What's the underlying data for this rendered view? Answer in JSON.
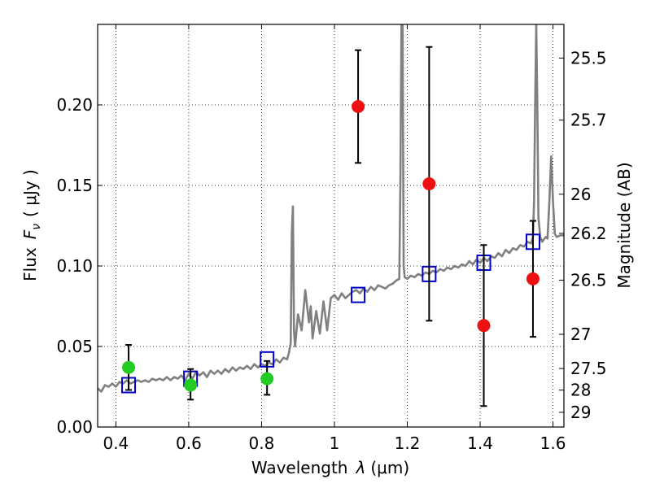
{
  "chart_data": {
    "type": "scatter",
    "title": "",
    "xlabel": "Wavelength",
    "xlabel_symbol": "λ",
    "xlabel_unit": "(μm)",
    "ylabel": "Flux",
    "ylabel_symbol": "F",
    "ylabel_sub": "ν",
    "ylabel_unit": "( μJy )",
    "y2label": "Magnitude (AB)",
    "xlim": [
      0.35,
      1.63
    ],
    "ylim": [
      0.0,
      0.25
    ],
    "grid": true,
    "x_ticks": [
      {
        "value": 0.4,
        "label": "0.4"
      },
      {
        "value": 0.6,
        "label": "0.6"
      },
      {
        "value": 0.8,
        "label": "0.8"
      },
      {
        "value": 1.0,
        "label": "1"
      },
      {
        "value": 1.2,
        "label": "1.2"
      },
      {
        "value": 1.4,
        "label": "1.4"
      },
      {
        "value": 1.6,
        "label": "1.6"
      }
    ],
    "y_ticks": [
      {
        "value": 0.0,
        "label": "0.00"
      },
      {
        "value": 0.05,
        "label": "0.05"
      },
      {
        "value": 0.1,
        "label": "0.10"
      },
      {
        "value": 0.15,
        "label": "0.15"
      },
      {
        "value": 0.2,
        "label": "0.20"
      }
    ],
    "y2_ticks": [
      {
        "mag": 25.5,
        "label": "25.5"
      },
      {
        "mag": 25.7,
        "label": "25.7"
      },
      {
        "mag": 26.0,
        "label": "26"
      },
      {
        "mag": 26.2,
        "label": "26.2"
      },
      {
        "mag": 26.5,
        "label": "26.5"
      },
      {
        "mag": 27.0,
        "label": "27"
      },
      {
        "mag": 27.5,
        "label": "27.5"
      },
      {
        "mag": 28.0,
        "label": "28"
      },
      {
        "mag": 29.0,
        "label": "29"
      }
    ],
    "series": [
      {
        "kind": "line",
        "color": "#808080",
        "points": [
          [
            0.35,
            0.024
          ],
          [
            0.36,
            0.022
          ],
          [
            0.37,
            0.026
          ],
          [
            0.38,
            0.025
          ],
          [
            0.39,
            0.027
          ],
          [
            0.4,
            0.025
          ],
          [
            0.41,
            0.028
          ],
          [
            0.42,
            0.027
          ],
          [
            0.43,
            0.029
          ],
          [
            0.44,
            0.027
          ],
          [
            0.45,
            0.028
          ],
          [
            0.46,
            0.029
          ],
          [
            0.47,
            0.028
          ],
          [
            0.48,
            0.029
          ],
          [
            0.49,
            0.028
          ],
          [
            0.5,
            0.03
          ],
          [
            0.51,
            0.029
          ],
          [
            0.52,
            0.03
          ],
          [
            0.53,
            0.029
          ],
          [
            0.54,
            0.031
          ],
          [
            0.55,
            0.029
          ],
          [
            0.56,
            0.031
          ],
          [
            0.57,
            0.03
          ],
          [
            0.58,
            0.032
          ],
          [
            0.59,
            0.029
          ],
          [
            0.6,
            0.033
          ],
          [
            0.61,
            0.03
          ],
          [
            0.62,
            0.034
          ],
          [
            0.63,
            0.032
          ],
          [
            0.64,
            0.034
          ],
          [
            0.65,
            0.031
          ],
          [
            0.66,
            0.035
          ],
          [
            0.67,
            0.033
          ],
          [
            0.68,
            0.035
          ],
          [
            0.69,
            0.033
          ],
          [
            0.7,
            0.036
          ],
          [
            0.71,
            0.034
          ],
          [
            0.72,
            0.037
          ],
          [
            0.73,
            0.035
          ],
          [
            0.74,
            0.037
          ],
          [
            0.75,
            0.036
          ],
          [
            0.76,
            0.038
          ],
          [
            0.77,
            0.036
          ],
          [
            0.78,
            0.039
          ],
          [
            0.79,
            0.037
          ],
          [
            0.8,
            0.039
          ],
          [
            0.81,
            0.038
          ],
          [
            0.82,
            0.04
          ],
          [
            0.83,
            0.039
          ],
          [
            0.84,
            0.042
          ],
          [
            0.85,
            0.04
          ],
          [
            0.86,
            0.043
          ],
          [
            0.87,
            0.042
          ],
          [
            0.875,
            0.046
          ],
          [
            0.88,
            0.052
          ],
          [
            0.883,
            0.12
          ],
          [
            0.886,
            0.137
          ],
          [
            0.889,
            0.06
          ],
          [
            0.892,
            0.05
          ],
          [
            0.9,
            0.07
          ],
          [
            0.91,
            0.06
          ],
          [
            0.92,
            0.085
          ],
          [
            0.93,
            0.065
          ],
          [
            0.935,
            0.075
          ],
          [
            0.94,
            0.055
          ],
          [
            0.95,
            0.072
          ],
          [
            0.96,
            0.058
          ],
          [
            0.97,
            0.078
          ],
          [
            0.98,
            0.06
          ],
          [
            0.99,
            0.08
          ],
          [
            1.0,
            0.082
          ],
          [
            1.01,
            0.079
          ],
          [
            1.02,
            0.083
          ],
          [
            1.03,
            0.08
          ],
          [
            1.04,
            0.082
          ],
          [
            1.05,
            0.084
          ],
          [
            1.06,
            0.085
          ],
          [
            1.07,
            0.083
          ],
          [
            1.08,
            0.086
          ],
          [
            1.09,
            0.084
          ],
          [
            1.1,
            0.087
          ],
          [
            1.11,
            0.085
          ],
          [
            1.12,
            0.088
          ],
          [
            1.13,
            0.087
          ],
          [
            1.14,
            0.086
          ],
          [
            1.15,
            0.088
          ],
          [
            1.16,
            0.089
          ],
          [
            1.17,
            0.091
          ],
          [
            1.178,
            0.092
          ],
          [
            1.181,
            0.15
          ],
          [
            1.184,
            0.25
          ],
          [
            1.187,
            0.25
          ],
          [
            1.19,
            0.1
          ],
          [
            1.193,
            0.093
          ],
          [
            1.2,
            0.092
          ],
          [
            1.21,
            0.094
          ],
          [
            1.22,
            0.093
          ],
          [
            1.23,
            0.095
          ],
          [
            1.24,
            0.094
          ],
          [
            1.25,
            0.096
          ],
          [
            1.26,
            0.095
          ],
          [
            1.27,
            0.097
          ],
          [
            1.28,
            0.096
          ],
          [
            1.29,
            0.098
          ],
          [
            1.3,
            0.097
          ],
          [
            1.31,
            0.099
          ],
          [
            1.32,
            0.098
          ],
          [
            1.33,
            0.1
          ],
          [
            1.34,
            0.099
          ],
          [
            1.35,
            0.101
          ],
          [
            1.36,
            0.1
          ],
          [
            1.37,
            0.103
          ],
          [
            1.38,
            0.101
          ],
          [
            1.39,
            0.104
          ],
          [
            1.4,
            0.102
          ],
          [
            1.41,
            0.105
          ],
          [
            1.42,
            0.103
          ],
          [
            1.43,
            0.106
          ],
          [
            1.44,
            0.105
          ],
          [
            1.45,
            0.108
          ],
          [
            1.46,
            0.106
          ],
          [
            1.47,
            0.11
          ],
          [
            1.48,
            0.108
          ],
          [
            1.49,
            0.111
          ],
          [
            1.5,
            0.11
          ],
          [
            1.51,
            0.113
          ],
          [
            1.52,
            0.112
          ],
          [
            1.53,
            0.115
          ],
          [
            1.54,
            0.114
          ],
          [
            1.545,
            0.118
          ],
          [
            1.548,
            0.14
          ],
          [
            1.551,
            0.2
          ],
          [
            1.554,
            0.25
          ],
          [
            1.557,
            0.2
          ],
          [
            1.56,
            0.13
          ],
          [
            1.565,
            0.118
          ],
          [
            1.57,
            0.115
          ],
          [
            1.58,
            0.118
          ],
          [
            1.585,
            0.117
          ],
          [
            1.59,
            0.14
          ],
          [
            1.595,
            0.168
          ],
          [
            1.6,
            0.14
          ],
          [
            1.605,
            0.12
          ],
          [
            1.61,
            0.118
          ],
          [
            1.62,
            0.119
          ],
          [
            1.63,
            0.119
          ]
        ]
      },
      {
        "kind": "squares",
        "color": "#0000cc",
        "points": [
          [
            0.435,
            0.026
          ],
          [
            0.605,
            0.03
          ],
          [
            0.815,
            0.042
          ],
          [
            1.065,
            0.082
          ],
          [
            1.26,
            0.095
          ],
          [
            1.41,
            0.102
          ],
          [
            1.545,
            0.115
          ]
        ]
      },
      {
        "kind": "dots",
        "color": "#22cc22",
        "points": [
          {
            "x": 0.435,
            "y": 0.037,
            "ylo": 0.023,
            "yhi": 0.051
          },
          {
            "x": 0.605,
            "y": 0.026,
            "ylo": 0.017,
            "yhi": 0.036
          },
          {
            "x": 0.815,
            "y": 0.03,
            "ylo": 0.02,
            "yhi": 0.041
          }
        ]
      },
      {
        "kind": "dots",
        "color": "#ee1111",
        "points": [
          {
            "x": 1.065,
            "y": 0.199,
            "ylo": 0.164,
            "yhi": 0.234
          },
          {
            "x": 1.26,
            "y": 0.151,
            "ylo": 0.066,
            "yhi": 0.236
          },
          {
            "x": 1.41,
            "y": 0.063,
            "ylo": 0.013,
            "yhi": 0.113
          },
          {
            "x": 1.545,
            "y": 0.092,
            "ylo": 0.056,
            "yhi": 0.128
          }
        ]
      }
    ]
  }
}
